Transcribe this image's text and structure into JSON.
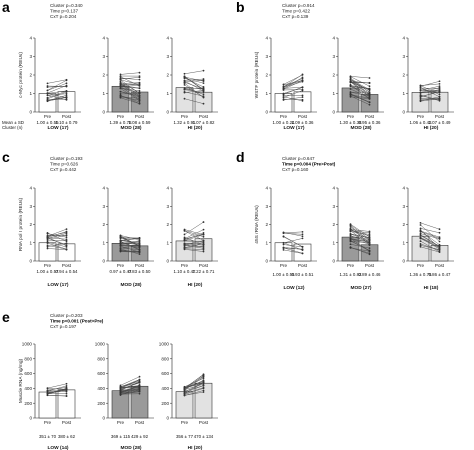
{
  "panels": [
    {
      "label": "a",
      "stats": [
        "Cluster p=0.340",
        "Time p=0.137",
        "CxT p=0.204"
      ],
      "bold_stat": -1,
      "ylabel": "c-Myc protein (REUs)",
      "ymax": 4,
      "yticks": [
        "0",
        "1",
        "2",
        "3",
        "4"
      ],
      "row_labels": [
        "Mean ± SD",
        "Cluster (n)"
      ],
      "groups": [
        {
          "name": "LOW (17)",
          "pre": 1.0,
          "post": 1.1,
          "means": [
            "1.00 ± 0.59",
            "1.10 ± 0.79"
          ]
        },
        {
          "name": "MOD (28)",
          "pre": 1.39,
          "post": 1.08,
          "means": [
            "1.39 ± 0.78",
            "1.08 ± 0.59"
          ]
        },
        {
          "name": "HI (20)",
          "pre": 1.32,
          "post": 1.07,
          "means": [
            "1.32 ± 0.91",
            "1.07 ± 0.82"
          ]
        }
      ]
    },
    {
      "label": "b",
      "stats": [
        "Cluster p=0.914",
        "Time p=0.422",
        "CxT p=0.139"
      ],
      "bold_stat": -1,
      "ylabel": "WSTF protein (REUs)",
      "ymax": 4,
      "yticks": [
        "0",
        "1",
        "2",
        "3",
        "4"
      ],
      "row_labels": [],
      "groups": [
        {
          "name": "LOW (17)",
          "pre": 1.0,
          "post": 1.09,
          "means": [
            "1.00 ± 0.24",
            "1.09 ± 0.36"
          ]
        },
        {
          "name": "MOD (28)",
          "pre": 1.3,
          "post": 0.95,
          "means": [
            "1.30 ± 0.38",
            "0.95 ± 0.36"
          ]
        },
        {
          "name": "HI (20)",
          "pre": 1.06,
          "post": 1.07,
          "means": [
            "1.06 ± 0.43",
            "1.07 ± 0.49"
          ]
        }
      ]
    },
    {
      "label": "c",
      "stats": [
        "Cluster p=0.193",
        "Time p=0.626",
        "CxT p=0.442"
      ],
      "bold_stat": -1,
      "ylabel": "RNA pol I protein (REUs)",
      "ymax": 4,
      "yticks": [
        "0",
        "1",
        "2",
        "3",
        "4"
      ],
      "row_labels": [],
      "groups": [
        {
          "name": "LOW (17)",
          "pre": 1.0,
          "post": 0.94,
          "means": [
            "1.00 ± 0.57",
            "0.94 ± 0.54"
          ]
        },
        {
          "name": "MOD (28)",
          "pre": 0.97,
          "post": 0.83,
          "means": [
            "0.97 ± 0.47",
            "0.83 ± 0.50"
          ]
        },
        {
          "name": "HI (20)",
          "pre": 1.1,
          "post": 1.22,
          "means": [
            "1.10 ± 0.47",
            "1.22 ± 0.71"
          ]
        }
      ]
    },
    {
      "label": "d",
      "stats": [
        "Cluster p=0.647",
        "Time p=0.004 (Pre>Post)",
        "CxT p=0.160"
      ],
      "bold_stat": 1,
      "ylabel": "45S rRNA (REUs)",
      "ymax": 4,
      "yticks": [
        "0",
        "1",
        "2",
        "3",
        "4"
      ],
      "row_labels": [],
      "groups": [
        {
          "name": "LOW (12)",
          "pre": 1.0,
          "post": 0.93,
          "means": [
            "1.00 ± 0.55",
            "0.93 ± 0.51"
          ]
        },
        {
          "name": "MOD (27)",
          "pre": 1.31,
          "post": 0.89,
          "means": [
            "1.31 ± 0.82",
            "0.89 ± 0.46"
          ]
        },
        {
          "name": "HI (18)",
          "pre": 1.36,
          "post": 0.86,
          "means": [
            "1.36 ± 0.75",
            "0.86 ± 0.47"
          ]
        }
      ]
    },
    {
      "label": "e",
      "stats": [
        "Cluster p=0.203",
        "Time p<0.001 (Post>Pre)",
        "CxT p=0.197"
      ],
      "bold_stat": 1,
      "ylabel": "Muscle RNA (ng/mg)",
      "ymax": 1000,
      "yticks": [
        "0",
        "200",
        "400",
        "600",
        "800",
        "1000"
      ],
      "row_labels": [],
      "groups": [
        {
          "name": "LOW (14)",
          "pre": 351,
          "post": 380,
          "means": [
            "351 ± 70",
            "380 ± 62"
          ]
        },
        {
          "name": "MOD (28)",
          "pre": 369,
          "post": 429,
          "means": [
            "369 ± 115",
            "429 ± 92"
          ]
        },
        {
          "name": "HI (20)",
          "pre": 356,
          "post": 470,
          "means": [
            "356 ± 77",
            "470 ± 134"
          ]
        }
      ]
    }
  ],
  "phase_labels": [
    "Pre",
    "Post"
  ],
  "colors": {
    "LOW": "#ffffff",
    "MOD": "#9a9a9a",
    "HI": "#e2e2e2",
    "line": "#4a4a4a",
    "axis": "#222222"
  }
}
